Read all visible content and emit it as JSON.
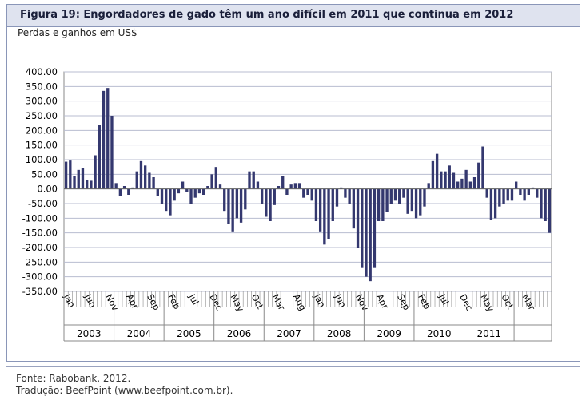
{
  "title": "Figura 19: Engordadores de gado têm um ano difícil em 2011 que continua em 2012",
  "subtitle": "Perdas e ganhos em US$",
  "footer": {
    "source": "Fonte: Rabobank, 2012.",
    "translation": "Tradução: BeefPoint (www.beefpoint.com.br)."
  },
  "colors": {
    "bar": "#34386f",
    "grid": "#b8bdd0",
    "title_bg": "#dfe3ef"
  },
  "chart_data": {
    "type": "bar",
    "ylim": [
      -350,
      400
    ],
    "yticks": [
      400,
      350,
      300,
      250,
      200,
      150,
      100,
      50,
      0,
      -50,
      -100,
      -150,
      -200,
      -250,
      -300,
      -350
    ],
    "ytick_labels": [
      "400.00",
      "350.00",
      "300.00",
      "250.00",
      "200.00",
      "150.00",
      "100.00",
      "50.00",
      "0.00",
      "-50.00",
      "-100.00",
      "-150.00",
      "-200.00",
      "-250.00",
      "-300.00",
      "-350.00"
    ],
    "month_labels": [
      "Jan",
      "Jun",
      "Nov",
      "Apr",
      "Sep",
      "Feb",
      "Jul",
      "Dec",
      "May",
      "Oct",
      "Mar",
      "Aug",
      "Jan",
      "Jun",
      "Nov",
      "Apr",
      "Sep",
      "Feb",
      "Jul",
      "Dec",
      "May",
      "Oct",
      "Mar"
    ],
    "year_labels": [
      "2003",
      "2004",
      "2005",
      "2006",
      "2007",
      "2008",
      "2009",
      "2010",
      "2011"
    ],
    "values": [
      93,
      97,
      45,
      65,
      72,
      30,
      28,
      115,
      220,
      335,
      345,
      250,
      20,
      -25,
      10,
      -20,
      5,
      60,
      95,
      80,
      55,
      40,
      -25,
      -50,
      -75,
      -90,
      -40,
      -15,
      25,
      -10,
      -50,
      -30,
      -15,
      -20,
      10,
      50,
      75,
      15,
      -75,
      -120,
      -145,
      -100,
      -115,
      -70,
      60,
      60,
      25,
      -50,
      -95,
      -110,
      -55,
      10,
      45,
      -20,
      15,
      20,
      20,
      -30,
      -20,
      -40,
      -110,
      -145,
      -190,
      -170,
      -110,
      -60,
      5,
      -30,
      -50,
      -135,
      -200,
      -270,
      -300,
      -315,
      -270,
      -110,
      -110,
      -80,
      -50,
      -40,
      -50,
      -30,
      -85,
      -75,
      -100,
      -90,
      -60,
      20,
      95,
      120,
      60,
      60,
      80,
      55,
      25,
      35,
      65,
      25,
      40,
      90,
      145,
      -30,
      -105,
      -100,
      -60,
      -50,
      -40,
      -40,
      25,
      -20,
      -40,
      -20,
      5,
      -30,
      -100,
      -110,
      -150
    ]
  }
}
